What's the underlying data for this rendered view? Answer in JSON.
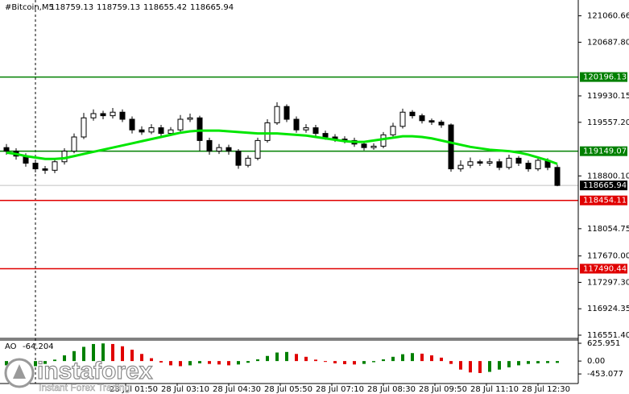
{
  "header": {
    "symbol": "#Bitcoin,M5",
    "ohlc": [
      118759.13,
      118759.13,
      118655.42,
      118665.94
    ]
  },
  "watermark": {
    "brand": "instaforex",
    "tagline": "Instant Forex Trading"
  },
  "chart_data": [
    {
      "type": "candlestick",
      "open": [
        119200,
        119150,
        119080,
        118980,
        118900,
        118880,
        119000,
        119150,
        119350,
        119620,
        119680,
        119650,
        119700,
        119600,
        119450,
        119420,
        119480,
        119400,
        119450,
        119600,
        119620,
        119300,
        119150,
        119200,
        119150,
        118950,
        119050,
        119300,
        119550,
        119780,
        119600,
        119450,
        119480,
        119400,
        119350,
        119320,
        119300,
        119250,
        119200,
        119220,
        119380,
        119500,
        119700,
        119650,
        119580,
        119560,
        119520,
        118900,
        118950,
        119000,
        118980,
        119000,
        118920,
        119050,
        118980,
        118900,
        119020,
        118920
      ],
      "high": [
        119250,
        119190,
        119120,
        119020,
        118940,
        119050,
        119190,
        119400,
        119690,
        119740,
        119720,
        119760,
        119740,
        119640,
        119500,
        119530,
        119520,
        119490,
        119660,
        119680,
        119650,
        119340,
        119250,
        119240,
        119180,
        119090,
        119340,
        119600,
        119840,
        119810,
        119640,
        119530,
        119520,
        119440,
        119390,
        119360,
        119340,
        119290,
        119260,
        119420,
        119550,
        119750,
        119730,
        119680,
        119610,
        119590,
        119540,
        119020,
        119060,
        119030,
        119050,
        119040,
        119100,
        119080,
        119020,
        119060,
        119050,
        118960
      ],
      "low": [
        119100,
        119030,
        118930,
        118850,
        118830,
        118840,
        118960,
        119120,
        119320,
        119580,
        119600,
        119610,
        119560,
        119400,
        119380,
        119390,
        119360,
        119370,
        119420,
        119560,
        119150,
        119100,
        119110,
        119100,
        118900,
        118920,
        119020,
        119270,
        119520,
        119560,
        119410,
        119410,
        119360,
        119310,
        119280,
        119260,
        119210,
        119160,
        119170,
        119190,
        119350,
        119470,
        119610,
        119540,
        119520,
        119480,
        118860,
        118860,
        118910,
        118940,
        118940,
        118880,
        118890,
        118940,
        118860,
        118870,
        118880,
        118655
      ],
      "close": [
        119150,
        119080,
        118980,
        118900,
        118880,
        119000,
        119150,
        119350,
        119620,
        119680,
        119650,
        119700,
        119600,
        119450,
        119420,
        119480,
        119400,
        119450,
        119600,
        119620,
        119300,
        119150,
        119200,
        119150,
        118950,
        119050,
        119300,
        119550,
        119780,
        119600,
        119450,
        119480,
        119400,
        119350,
        119320,
        119300,
        119250,
        119200,
        119220,
        119380,
        119500,
        119700,
        119650,
        119580,
        119560,
        119520,
        118900,
        118950,
        119000,
        118980,
        119000,
        118920,
        119050,
        118980,
        118900,
        119020,
        118920,
        118666
      ],
      "ma": {
        "color": "#00e600",
        "values": [
          119130,
          119110,
          119080,
          119060,
          119040,
          119040,
          119050,
          119080,
          119110,
          119140,
          119170,
          119200,
          119230,
          119260,
          119290,
          119320,
          119350,
          119380,
          119410,
          119430,
          119440,
          119440,
          119440,
          119430,
          119420,
          119410,
          119400,
          119400,
          119400,
          119390,
          119380,
          119370,
          119350,
          119330,
          119310,
          119290,
          119280,
          119280,
          119300,
          119320,
          119340,
          119360,
          119360,
          119350,
          119330,
          119300,
          119270,
          119240,
          119210,
          119190,
          119170,
          119160,
          119150,
          119130,
          119100,
          119060,
          119020,
          118970
        ]
      },
      "ylim": [
        116505.9,
        121283.9
      ],
      "yticks": [
        {
          "value": 121060.66,
          "label": "121060.66"
        },
        {
          "value": 120687.8,
          "label": "120687.80"
        },
        {
          "value": 119930.15,
          "label": "119930.15"
        },
        {
          "value": 119557.2,
          "label": "119557.20"
        },
        {
          "value": 118800.1,
          "label": "118800.10"
        },
        {
          "value": 118054.75,
          "label": "118054.75"
        },
        {
          "value": 117670,
          "label": "117670.00"
        },
        {
          "value": 117297.3,
          "label": "117297.30"
        },
        {
          "value": 116924.35,
          "label": "116924.35"
        },
        {
          "value": 116551.4,
          "label": "116551.40"
        }
      ],
      "levels": [
        {
          "value": 120196.13,
          "color": "#008000"
        },
        {
          "value": 119149.07,
          "color": "#008000"
        },
        {
          "value": 118454.11,
          "color": "#e00000"
        },
        {
          "value": 117490.44,
          "color": "#e00000"
        }
      ],
      "last_price": 118665.94,
      "x_labels": [
        "28 Jul 01:50",
        "28 Jul 03:10",
        "28 Jul 04:30",
        "28 Jul 05:50",
        "28 Jul 07:10",
        "28 Jul 08:30",
        "28 Jul 09:50",
        "28 Jul 11:10",
        "28 Jul 12:30"
      ]
    },
    {
      "type": "histogram",
      "name": "AO",
      "values": [
        -150,
        -200,
        -220,
        -180,
        -100,
        50,
        200,
        350,
        500,
        600,
        620,
        600,
        520,
        400,
        250,
        100,
        -50,
        -150,
        -180,
        -150,
        -80,
        -100,
        -120,
        -150,
        -120,
        -60,
        60,
        180,
        300,
        320,
        250,
        150,
        50,
        -30,
        -80,
        -110,
        -120,
        -100,
        -40,
        60,
        150,
        240,
        280,
        260,
        200,
        120,
        -100,
        -300,
        -400,
        -420,
        -380,
        -300,
        -220,
        -150,
        -100,
        -80,
        -70,
        -64.204
      ],
      "up_color": "#008000",
      "down_color": "#e00000",
      "ylim": [
        -790,
        740
      ],
      "yticks": [
        625.951,
        {
          "value": 0,
          "label": "0.00"
        },
        -453.077
      ]
    }
  ]
}
